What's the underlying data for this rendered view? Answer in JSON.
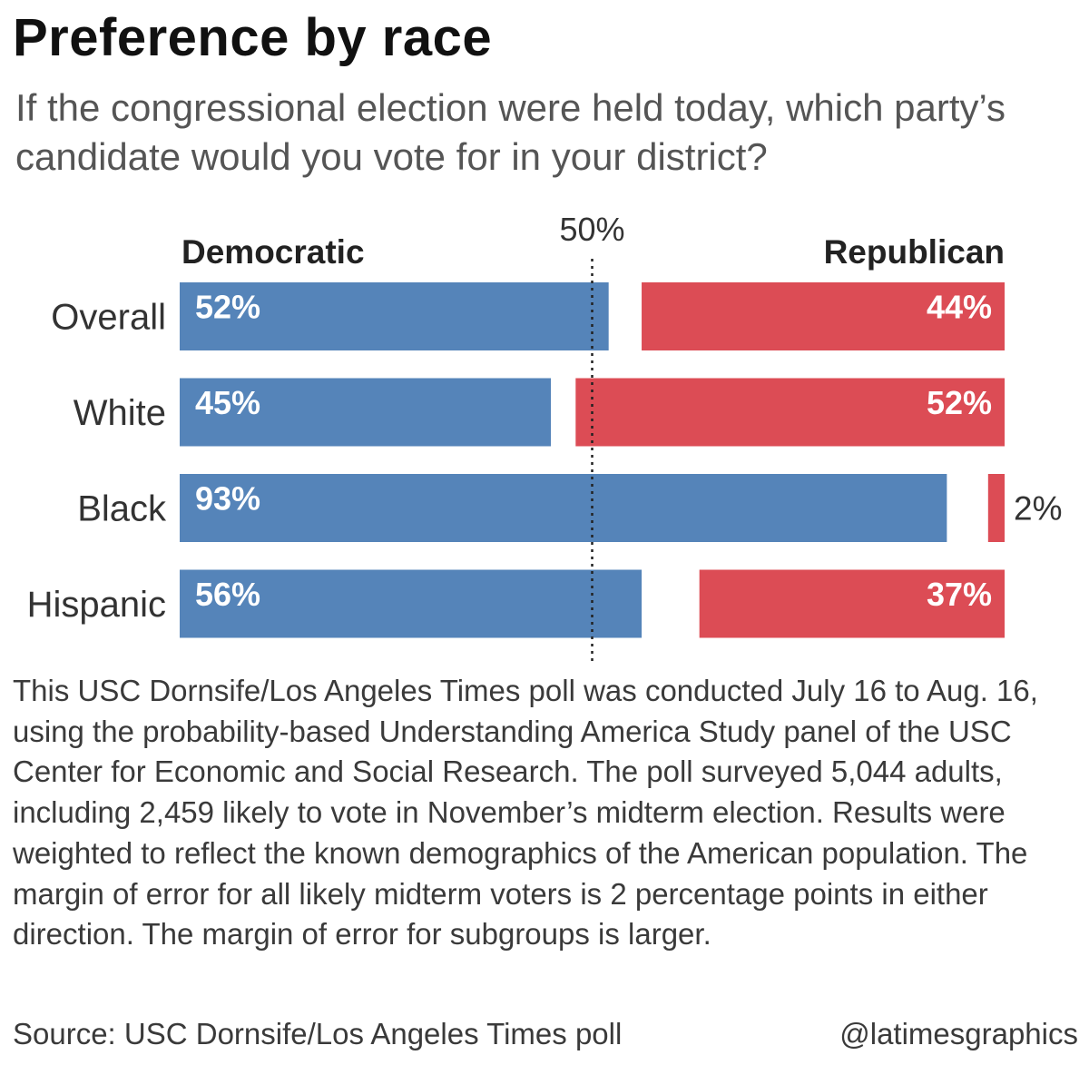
{
  "title": "Preference by race",
  "subtitle": "If the congressional election were held today, which party’s candidate would you vote for in your district?",
  "note": "This USC Dornsife/Los Angeles Times poll was conducted July 16 to Aug. 16, using the probability-based Understanding America Study panel of the USC Center for Economic and Social Research. The poll surveyed 5,044 adults, including 2,459 likely to vote in November’s midterm election. Results were weighted to reflect the known demographics of the American population. The margin of error for all likely midterm voters is 2 percentage points in either direction. The margin of error for subgroups is larger.",
  "source": "Source: USC Dornsife/Los Angeles Times poll",
  "credit": "@latimesgraphics",
  "chart_data": {
    "type": "bar",
    "orientation": "horizontal-diverging",
    "categories": [
      "Overall",
      "White",
      "Black",
      "Hispanic"
    ],
    "series": [
      {
        "name": "Democratic",
        "values": [
          52,
          45,
          93,
          56
        ],
        "labels": [
          "52%",
          "45%",
          "93%",
          "56%"
        ],
        "color": "#5584b9",
        "anchor": "left"
      },
      {
        "name": "Republican",
        "values": [
          44,
          52,
          2,
          37
        ],
        "labels": [
          "44%",
          "52%",
          "2%",
          "37%"
        ],
        "color": "#dc4c55",
        "anchor": "right"
      }
    ],
    "xlim": [
      0,
      100
    ],
    "reference_line": {
      "value": 50,
      "label": "50%",
      "style": "dotted"
    }
  }
}
